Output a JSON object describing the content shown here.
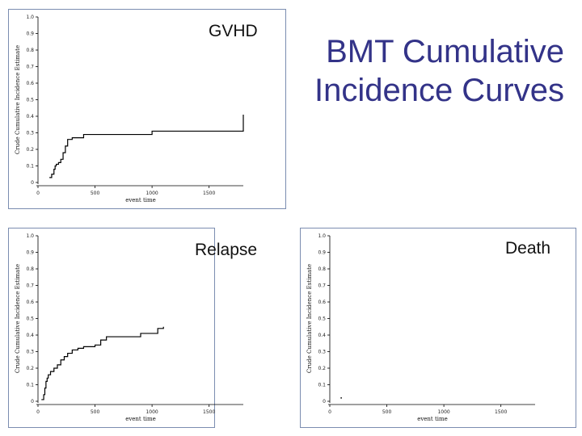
{
  "slide": {
    "title_line1": "BMT Cumulative",
    "title_line2": "Incidence Curves"
  },
  "chart_data": [
    {
      "type": "line",
      "label": "GVHD",
      "xlabel": "event time",
      "ylabel": "Crude Cumulative Incidence Estimate",
      "xlim": [
        0,
        1800
      ],
      "ylim": [
        0,
        1.0
      ],
      "x_ticks": [
        "0",
        "500",
        "1000",
        "1500"
      ],
      "y_ticks": [
        "0",
        "0.1",
        "0.2",
        "0.3",
        "0.4",
        "0.5",
        "0.6",
        "0.7",
        "0.8",
        "0.9",
        "1.0"
      ],
      "series": [
        {
          "step": true,
          "x": [
            100,
            120,
            140,
            150,
            160,
            180,
            200,
            220,
            240,
            260,
            300,
            400,
            1000,
            1800
          ],
          "y": [
            0.03,
            0.05,
            0.08,
            0.1,
            0.11,
            0.12,
            0.14,
            0.18,
            0.22,
            0.26,
            0.27,
            0.29,
            0.31,
            0.41
          ]
        }
      ]
    },
    {
      "type": "line",
      "label": "Relapse",
      "xlabel": "event time",
      "ylabel": "Crude Cumulative Incidence Estimate",
      "xlim": [
        0,
        1800
      ],
      "ylim": [
        0,
        1.0
      ],
      "x_ticks": [
        "0",
        "500",
        "1000",
        "1500"
      ],
      "y_ticks": [
        "0",
        "0.1",
        "0.2",
        "0.3",
        "0.4",
        "0.5",
        "0.6",
        "0.7",
        "0.8",
        "0.9",
        "1.0"
      ],
      "series": [
        {
          "step": true,
          "x": [
            30,
            50,
            60,
            70,
            80,
            90,
            110,
            140,
            170,
            200,
            230,
            260,
            300,
            350,
            400,
            500,
            550,
            600,
            900,
            1050,
            1100
          ],
          "y": [
            0.01,
            0.04,
            0.08,
            0.12,
            0.14,
            0.16,
            0.18,
            0.2,
            0.22,
            0.25,
            0.27,
            0.29,
            0.31,
            0.32,
            0.33,
            0.34,
            0.37,
            0.39,
            0.41,
            0.44,
            0.45
          ]
        }
      ]
    },
    {
      "type": "line",
      "label": "Death",
      "xlabel": "event time",
      "ylabel": "Crude Cumulative Incidence Estimate",
      "xlim": [
        0,
        1800
      ],
      "ylim": [
        0,
        1.0
      ],
      "x_ticks": [
        "0",
        "500",
        "1000",
        "1500"
      ],
      "y_ticks": [
        "0",
        "0.1",
        "0.2",
        "0.3",
        "0.4",
        "0.5",
        "0.6",
        "0.7",
        "0.8",
        "0.9",
        "1.0"
      ],
      "series": [
        {
          "step": true,
          "x": [
            100
          ],
          "y": [
            0.02
          ]
        }
      ]
    }
  ]
}
